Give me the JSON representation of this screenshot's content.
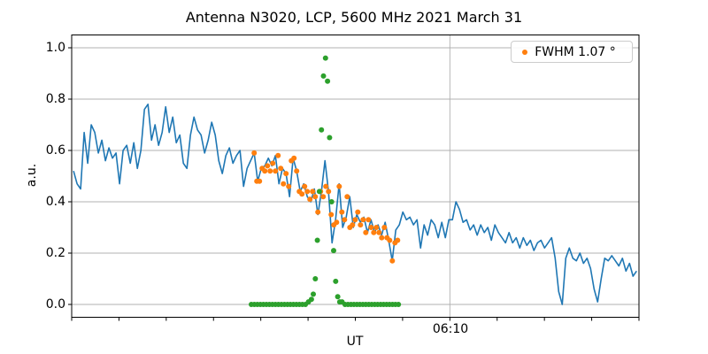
{
  "title": "Antenna N3020, LCP, 5600 MHz 2021 March 31",
  "axes": {
    "ylabel": "a.u.",
    "xlabel": "UT",
    "x_tick_label": "06:10",
    "y_tick_labels": [
      "0.0",
      "0.2",
      "0.4",
      "0.6",
      "0.8",
      "1.0"
    ]
  },
  "legend": {
    "label": "FWHM 1.07 °",
    "marker_color": "#ff7f0e",
    "position": "upper right"
  },
  "colors": {
    "signal_blue": "#1f77b4",
    "fit_orange": "#ff7f0e",
    "beam_green": "#2ca02c",
    "grid": "#b0b0b0",
    "spine": "#000000"
  },
  "chart_data": {
    "type": "line",
    "title": "Antenna N3020, LCP, 5600 MHz 2021 March 31",
    "xlabel": "UT",
    "ylabel": "a.u.",
    "ylim": [
      -0.05,
      1.05
    ],
    "y_ticks": [
      0.0,
      0.2,
      0.4,
      0.6,
      0.8,
      1.0
    ],
    "grid": {
      "horizontal_at_y_ticks": true,
      "vertical_at_labeled_tick": true
    },
    "x_axis": {
      "domain_minutes": [
        0,
        12
      ],
      "n_ticks": 13,
      "minor_tick_every_minutes": 1,
      "labeled_tick": {
        "index": 8,
        "label": "06:10"
      }
    },
    "legend": {
      "entries": [
        {
          "label": "FWHM 1.07 °",
          "color": "#ff7f0e",
          "marker": "dot"
        }
      ],
      "position": "upper right"
    },
    "series": [
      {
        "name": "antenna-signal",
        "type": "line",
        "color": "#1f77b4",
        "x_start": 0.04,
        "x_step": 0.0749,
        "values": [
          0.52,
          0.47,
          0.45,
          0.67,
          0.55,
          0.7,
          0.67,
          0.59,
          0.64,
          0.56,
          0.61,
          0.57,
          0.59,
          0.47,
          0.6,
          0.62,
          0.55,
          0.63,
          0.53,
          0.6,
          0.76,
          0.78,
          0.64,
          0.7,
          0.62,
          0.67,
          0.77,
          0.67,
          0.73,
          0.63,
          0.66,
          0.55,
          0.53,
          0.66,
          0.73,
          0.68,
          0.66,
          0.59,
          0.64,
          0.71,
          0.66,
          0.56,
          0.51,
          0.58,
          0.61,
          0.55,
          0.58,
          0.6,
          0.46,
          0.53,
          0.56,
          0.59,
          0.48,
          0.53,
          0.54,
          0.57,
          0.54,
          0.58,
          0.47,
          0.53,
          0.51,
          0.42,
          0.57,
          0.52,
          0.44,
          0.47,
          0.42,
          0.4,
          0.45,
          0.35,
          0.44,
          0.56,
          0.44,
          0.24,
          0.33,
          0.47,
          0.3,
          0.34,
          0.42,
          0.3,
          0.35,
          0.32,
          0.34,
          0.28,
          0.33,
          0.28,
          0.31,
          0.27,
          0.32,
          0.25,
          0.17,
          0.29,
          0.31,
          0.36,
          0.33,
          0.34,
          0.31,
          0.33,
          0.22,
          0.31,
          0.27,
          0.33,
          0.31,
          0.26,
          0.32,
          0.26,
          0.33,
          0.33,
          0.4,
          0.37,
          0.32,
          0.33,
          0.29,
          0.31,
          0.27,
          0.31,
          0.28,
          0.3,
          0.25,
          0.31,
          0.28,
          0.26,
          0.24,
          0.28,
          0.24,
          0.26,
          0.22,
          0.26,
          0.23,
          0.25,
          0.21,
          0.24,
          0.25,
          0.22,
          0.24,
          0.26,
          0.18,
          0.05,
          0.0,
          0.18,
          0.22,
          0.18,
          0.17,
          0.2,
          0.16,
          0.18,
          0.14,
          0.06,
          0.01,
          0.1,
          0.18,
          0.17,
          0.19,
          0.17,
          0.15,
          0.18,
          0.13,
          0.16,
          0.11,
          0.13
        ]
      },
      {
        "name": "fit-scan-points",
        "type": "scatter",
        "color": "#ff7f0e",
        "x_start": 3.86,
        "x_step": 0.0562,
        "values": [
          0.59,
          0.48,
          0.48,
          0.53,
          0.52,
          0.54,
          0.52,
          0.55,
          0.52,
          0.58,
          0.53,
          0.47,
          0.51,
          0.46,
          0.56,
          0.57,
          0.52,
          0.44,
          0.43,
          0.46,
          0.44,
          0.41,
          0.44,
          0.42,
          0.36,
          0.44,
          0.42,
          0.46,
          0.44,
          0.35,
          0.31,
          0.32,
          0.46,
          0.36,
          0.33,
          0.42,
          0.3,
          0.31,
          0.33,
          0.36,
          0.31,
          0.33,
          0.28,
          0.33,
          0.3,
          0.28,
          0.3,
          0.28,
          0.26,
          0.3,
          0.26,
          0.25,
          0.17,
          0.24,
          0.25
        ]
      },
      {
        "name": "beam-baseline-left",
        "type": "scatter",
        "color": "#2ca02c",
        "x_start": 3.8,
        "x_step": 0.0636,
        "values": [
          0,
          0,
          0,
          0,
          0,
          0,
          0,
          0,
          0,
          0,
          0,
          0,
          0,
          0,
          0,
          0,
          0,
          0,
          0,
          0.01,
          0.02
        ]
      },
      {
        "name": "beam-peak",
        "type": "scatter",
        "color": "#2ca02c",
        "x_start": 5.11,
        "x_step": 0.0431,
        "values": [
          0.04,
          0.1,
          0.25,
          0.44,
          0.68,
          0.89,
          0.96,
          0.87,
          0.65,
          0.4,
          0.21,
          0.09,
          0.03,
          0.01
        ]
      },
      {
        "name": "beam-baseline-right",
        "type": "scatter",
        "color": "#2ca02c",
        "x_start": 5.72,
        "x_step": 0.0627,
        "values": [
          0.01,
          0,
          0,
          0,
          0,
          0,
          0,
          0,
          0,
          0,
          0,
          0,
          0,
          0,
          0,
          0,
          0,
          0,
          0,
          0
        ]
      }
    ]
  }
}
